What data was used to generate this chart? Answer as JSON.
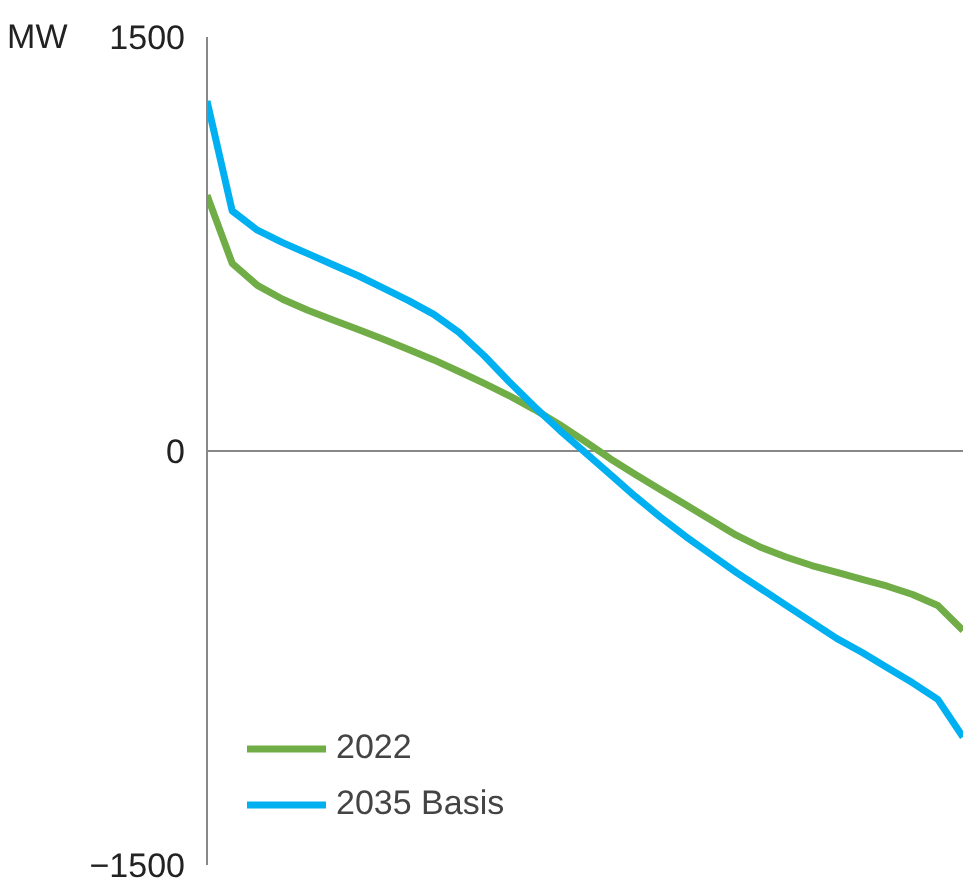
{
  "chart_data": {
    "type": "line",
    "ylabel": "MW",
    "categories": [
      null,
      null,
      null,
      null,
      null,
      null,
      null,
      null,
      null,
      null,
      null,
      null,
      null,
      null,
      null,
      null,
      null,
      null,
      null,
      null,
      null,
      null,
      null,
      null,
      null,
      null,
      null,
      null,
      null,
      null,
      null
    ],
    "series": [
      {
        "name": "2022",
        "color": "#70ad47",
        "values": [
          927,
          680,
          600,
          550,
          510,
          475,
          440,
          405,
          368,
          330,
          288,
          245,
          200,
          150,
          95,
          35,
          -28,
          -85,
          -140,
          -195,
          -250,
          -305,
          -350,
          -385,
          -415,
          -440,
          -465,
          -490,
          -520,
          -560,
          -650
        ]
      },
      {
        "name": "2035 Basis",
        "color": "#00b0f0",
        "values": [
          1268,
          870,
          800,
          755,
          715,
          675,
          635,
          590,
          545,
          495,
          430,
          345,
          250,
          160,
          75,
          -5,
          -85,
          -165,
          -240,
          -310,
          -375,
          -440,
          -500,
          -560,
          -620,
          -680,
          -730,
          -785,
          -840,
          -900,
          -1036
        ]
      }
    ],
    "ylim": [
      -1500,
      1500
    ],
    "yticks": [
      1500,
      0,
      -1500
    ],
    "legend": "bottom left",
    "marker": "none",
    "line_style": "solid"
  }
}
